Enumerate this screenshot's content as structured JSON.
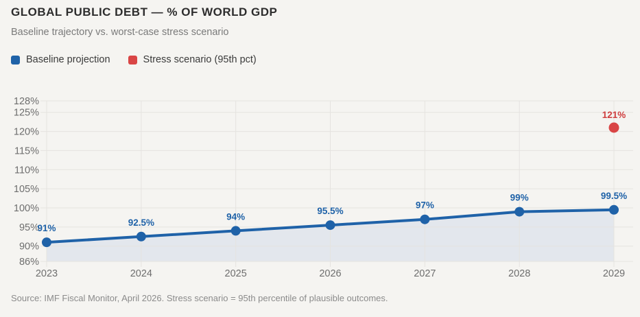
{
  "header": {
    "title": "GLOBAL PUBLIC DEBT — % OF WORLD GDP",
    "subtitle": "Baseline trajectory vs. worst-case stress scenario"
  },
  "legend": [
    {
      "label": "Baseline projection",
      "color": "#1f62a8"
    },
    {
      "label": "Stress scenario (95th pct)",
      "color": "#d94545"
    }
  ],
  "colors": {
    "background": "#f5f4f1",
    "gridline": "#e5e3e0",
    "axis_text": "#6e6e6e",
    "area_fill": "#e3e7ed",
    "baseline_blue": "#1f62a8",
    "stress_red": "#d94545",
    "stress_label_red": "#cf3e3e"
  },
  "chart_data": {
    "type": "line",
    "title": "GLOBAL PUBLIC DEBT — % OF WORLD GDP",
    "subtitle": "Baseline trajectory vs. worst-case stress scenario",
    "x": [
      2023,
      2024,
      2025,
      2026,
      2027,
      2028,
      2029
    ],
    "xlabel": "",
    "ylabel": "",
    "ylim": [
      86,
      128
    ],
    "y_ticks": [
      86,
      90,
      95,
      100,
      105,
      110,
      115,
      120,
      125,
      128
    ],
    "y_tick_suffix": "%",
    "grid": true,
    "legend_position": "top",
    "series": [
      {
        "name": "Baseline projection",
        "type": "line+area+markers",
        "color": "#1f62a8",
        "values": [
          91,
          92.5,
          94,
          95.5,
          97,
          99,
          99.5
        ],
        "labels": [
          "91%",
          "92.5%",
          "94%",
          "95.5%",
          "97%",
          "99%",
          "99.5%"
        ]
      },
      {
        "name": "Stress scenario (95th pct)",
        "type": "scatter",
        "color": "#d94545",
        "points": [
          {
            "x": 2029,
            "y": 121,
            "label": "121%"
          }
        ]
      }
    ]
  },
  "source": "Source: IMF Fiscal Monitor, April 2026. Stress scenario = 95th percentile of plausible outcomes."
}
